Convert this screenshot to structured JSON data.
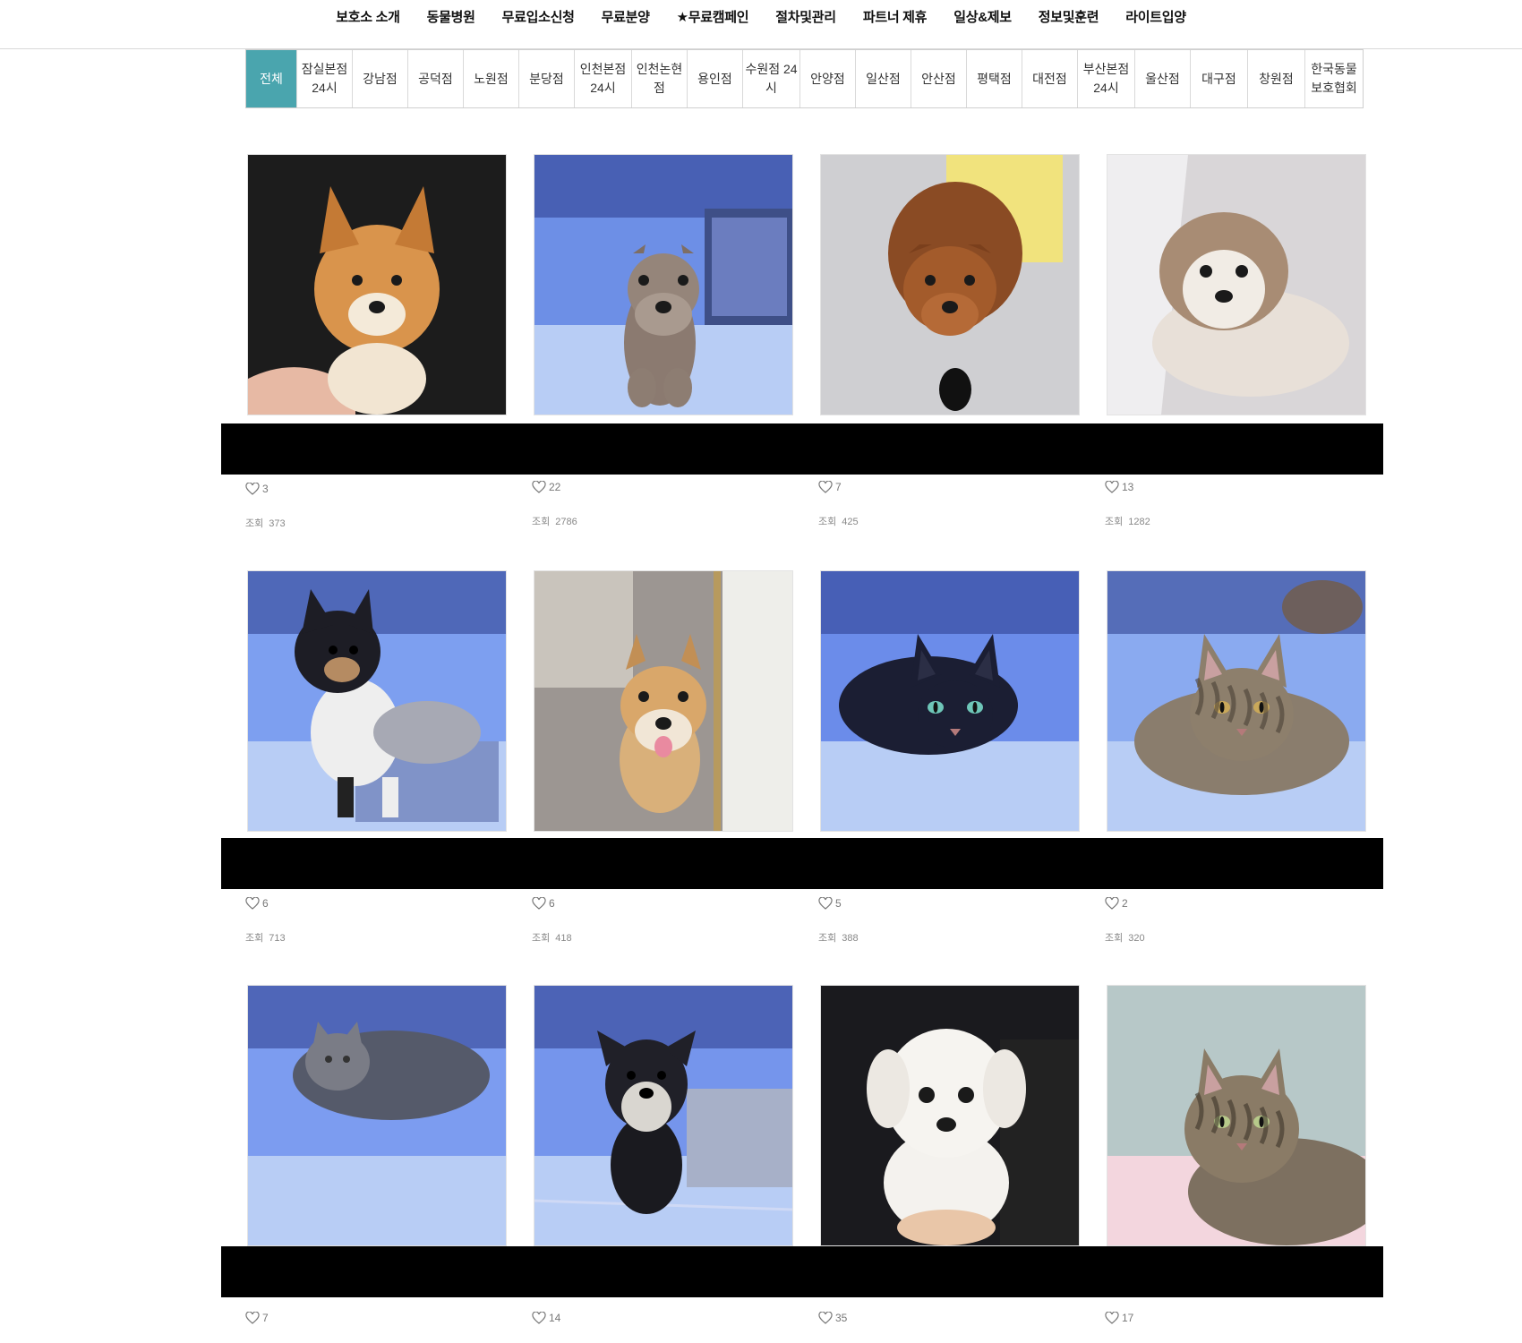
{
  "nav": {
    "items": [
      "보호소 소개",
      "동물병원",
      "무료입소신청",
      "무료분양",
      "★무료캠페인",
      "절차및관리",
      "파트너 제휴",
      "일상&제보",
      "정보및훈련",
      "라이트입양"
    ]
  },
  "tabs": {
    "items": [
      {
        "label": "전체",
        "active": true
      },
      {
        "label": "잠실본점\n24시"
      },
      {
        "label": "강남점"
      },
      {
        "label": "공덕점"
      },
      {
        "label": "노원점"
      },
      {
        "label": "분당점"
      },
      {
        "label": "인천본점\n24시"
      },
      {
        "label": "인천논현\n점"
      },
      {
        "label": "용인점"
      },
      {
        "label": "수원점 24\n시"
      },
      {
        "label": "안양점"
      },
      {
        "label": "일산점"
      },
      {
        "label": "안산점"
      },
      {
        "label": "평택점"
      },
      {
        "label": "대전점"
      },
      {
        "label": "부산본점\n24시"
      },
      {
        "label": "울산점"
      },
      {
        "label": "대구점"
      },
      {
        "label": "창원점"
      },
      {
        "label": "한국동물\n보호협회"
      }
    ]
  },
  "views_label": "조회",
  "posts": [
    {
      "animal": "shiba-puppy",
      "likes": "3",
      "views": "373"
    },
    {
      "animal": "poodle-mix",
      "likes": "22",
      "views": "2786"
    },
    {
      "animal": "brown-terrier",
      "likes": "7",
      "views": "425"
    },
    {
      "animal": "shih-tzu-mix",
      "likes": "13",
      "views": "1282"
    },
    {
      "animal": "sheltie-mix",
      "likes": "6",
      "views": "713"
    },
    {
      "animal": "jindo-mix",
      "likes": "6",
      "views": "418"
    },
    {
      "animal": "black-cat",
      "likes": "5",
      "views": "388"
    },
    {
      "animal": "tabby-cat",
      "likes": "2",
      "views": "320"
    },
    {
      "animal": "gray-longhair-cat",
      "likes": "7",
      "views": ""
    },
    {
      "animal": "schnauzer",
      "likes": "14",
      "views": ""
    },
    {
      "animal": "white-maltese",
      "likes": "35",
      "views": ""
    },
    {
      "animal": "tabby-kitten",
      "likes": "17",
      "views": ""
    }
  ],
  "colors": {
    "accent": "#4aa5ae",
    "kennel_blue": "#8aaaf0",
    "redaction": "#000000"
  }
}
